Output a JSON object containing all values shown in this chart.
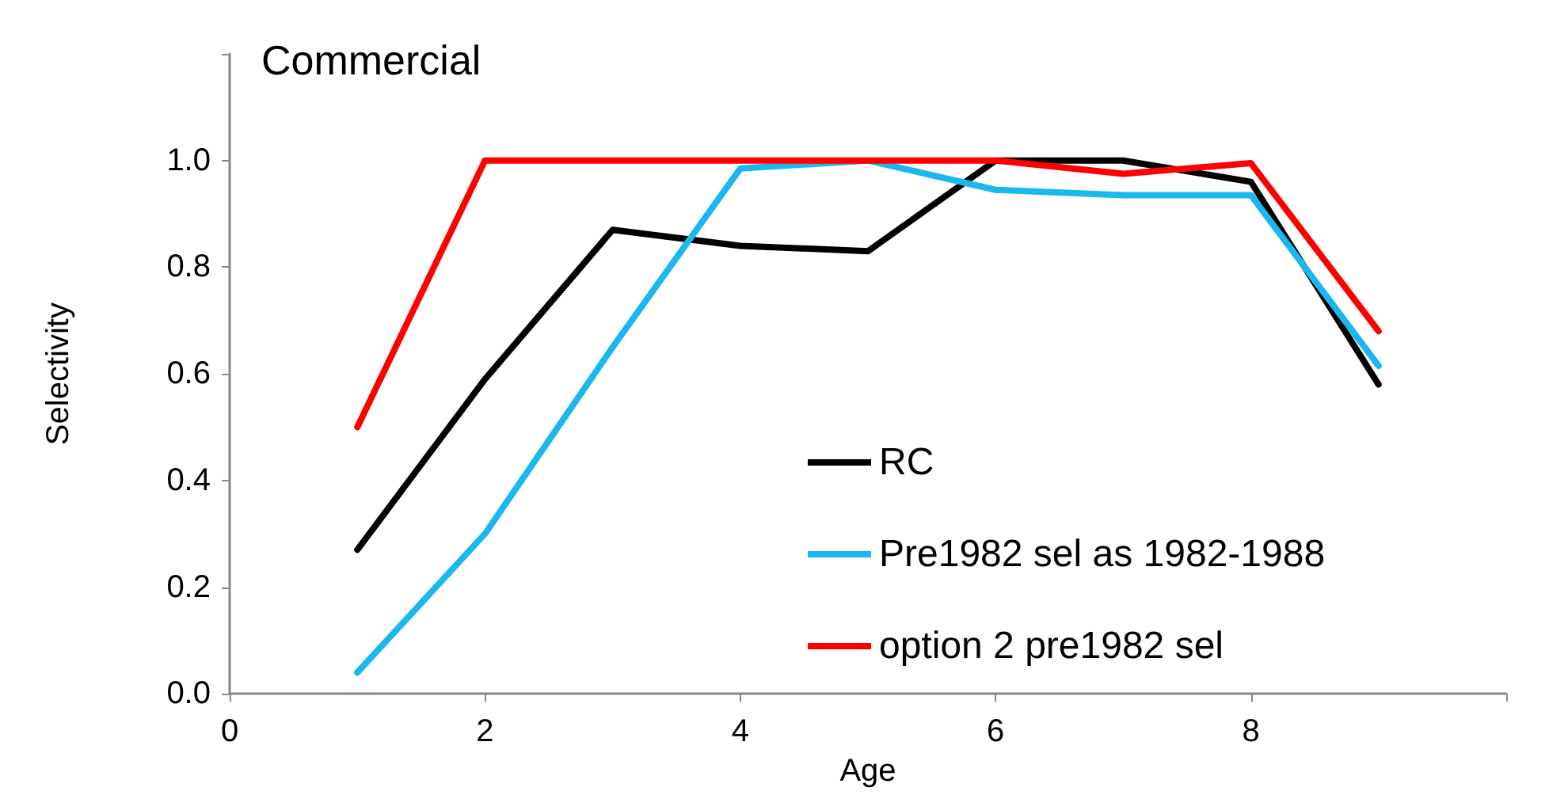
{
  "chart_data": {
    "type": "line",
    "title": "Commercial",
    "xlabel": "Age",
    "ylabel": "Selectivity",
    "x": [
      1,
      2,
      3,
      4,
      5,
      6,
      7,
      8,
      9
    ],
    "xlim": [
      0,
      10
    ],
    "xticks": [
      0,
      2,
      4,
      6,
      8,
      {
        "value": 10,
        "label": null
      }
    ],
    "ylim": [
      0,
      1.2
    ],
    "yticks": [
      {
        "value": 0,
        "label": "0.0"
      },
      {
        "value": 0.2,
        "label": "0.2"
      },
      {
        "value": 0.4,
        "label": "0.4"
      },
      {
        "value": 0.6,
        "label": "0.6"
      },
      {
        "value": 0.8,
        "label": "0.8"
      },
      {
        "value": 1,
        "label": "1.0"
      },
      {
        "value": 1.2,
        "label": null
      }
    ],
    "grid": false,
    "legend": "bottom right",
    "marker": "none",
    "line_style": "solid",
    "series": [
      {
        "name": "RC",
        "color": "#000000",
        "values": [
          0.27,
          0.59,
          0.87,
          0.84,
          0.83,
          1.0,
          1.0,
          0.96,
          0.58
        ]
      },
      {
        "name": "Pre1982 sel as 1982-1988",
        "color": "#1ab8ec",
        "values": [
          0.04,
          0.3,
          0.65,
          0.985,
          1.0,
          0.945,
          0.935,
          0.935,
          0.615
        ]
      },
      {
        "name": "option 2 pre1982 sel",
        "color": "#ff0000",
        "values": [
          0.5,
          1.0,
          1.0,
          1.0,
          1.0,
          1.0,
          0.975,
          0.995,
          0.68
        ]
      }
    ]
  }
}
